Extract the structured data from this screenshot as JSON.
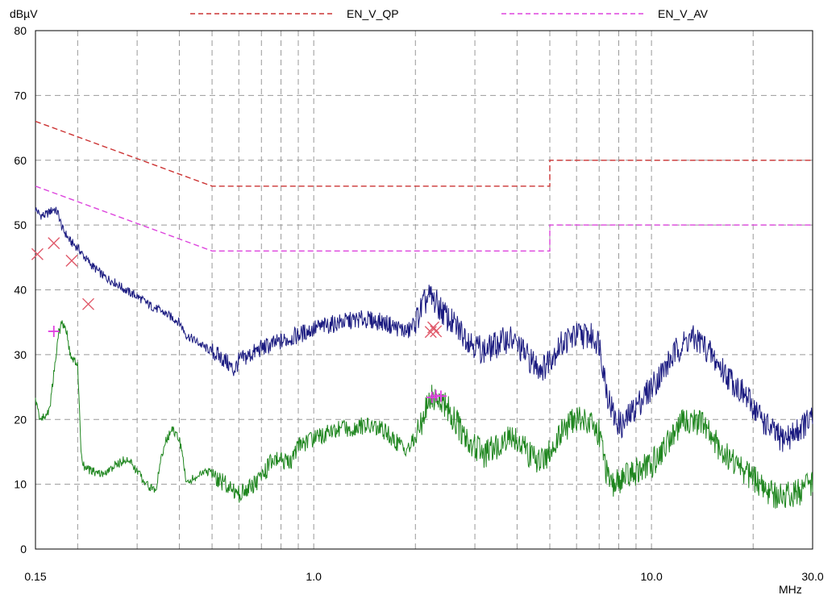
{
  "chart_data": {
    "type": "line",
    "xscale": "log",
    "xlim": [
      0.15,
      30.0
    ],
    "ylim": [
      0,
      80
    ],
    "ylabel": "dBµV",
    "xlabel": "MHz",
    "grid": true,
    "legend_position": "top",
    "x_tick_labels": [
      "0.15",
      "1.0",
      "10.0",
      "30.0"
    ],
    "x_ticks": [
      0.15,
      1.0,
      10.0,
      30.0
    ],
    "y_ticks": [
      0,
      10,
      20,
      30,
      40,
      50,
      60,
      70,
      80
    ],
    "y_tick_labels": [
      "0",
      "10",
      "20",
      "30",
      "40",
      "50",
      "60",
      "70",
      "80"
    ],
    "limits": [
      {
        "name": "EN_V_QP",
        "color": "#cc3333",
        "points": [
          [
            0.15,
            66
          ],
          [
            0.5,
            56
          ],
          [
            5.0,
            56
          ],
          [
            5.0,
            60
          ],
          [
            30.0,
            60
          ]
        ]
      },
      {
        "name": "EN_V_AV",
        "color": "#dd44dd",
        "points": [
          [
            0.15,
            56
          ],
          [
            0.5,
            46
          ],
          [
            5.0,
            46
          ],
          [
            5.0,
            50
          ],
          [
            30.0,
            50
          ]
        ]
      }
    ],
    "traces": [
      {
        "color": "#1a1a80",
        "points": [
          [
            0.15,
            52.5
          ],
          [
            0.155,
            51.5
          ],
          [
            0.16,
            51.5
          ],
          [
            0.165,
            52
          ],
          [
            0.17,
            52.5
          ],
          [
            0.175,
            51.8
          ],
          [
            0.18,
            49.5
          ],
          [
            0.19,
            47.5
          ],
          [
            0.2,
            46.5
          ],
          [
            0.21,
            45
          ],
          [
            0.22,
            43.8
          ],
          [
            0.24,
            42
          ],
          [
            0.26,
            41
          ],
          [
            0.28,
            39.8
          ],
          [
            0.3,
            39
          ],
          [
            0.33,
            37.5
          ],
          [
            0.36,
            36.5
          ],
          [
            0.4,
            35
          ],
          [
            0.42,
            33
          ],
          [
            0.45,
            32
          ],
          [
            0.48,
            31
          ],
          [
            0.5,
            30.5
          ],
          [
            0.55,
            29
          ],
          [
            0.58,
            27.5
          ],
          [
            0.6,
            29
          ],
          [
            0.65,
            30
          ],
          [
            0.7,
            31
          ],
          [
            0.8,
            32
          ],
          [
            0.9,
            33
          ],
          [
            1.0,
            34
          ],
          [
            1.2,
            35
          ],
          [
            1.4,
            35.5
          ],
          [
            1.6,
            35
          ],
          [
            1.8,
            34
          ],
          [
            1.9,
            33.5
          ],
          [
            2.0,
            35
          ],
          [
            2.1,
            37.5
          ],
          [
            2.2,
            39
          ],
          [
            2.3,
            38
          ],
          [
            2.5,
            35.5
          ],
          [
            2.8,
            33
          ],
          [
            3.0,
            31.5
          ],
          [
            3.2,
            30.5
          ],
          [
            3.6,
            32
          ],
          [
            3.8,
            32.5
          ],
          [
            4.0,
            31.5
          ],
          [
            4.5,
            28.5
          ],
          [
            4.8,
            28
          ],
          [
            5.0,
            29.5
          ],
          [
            5.5,
            32
          ],
          [
            6.0,
            33
          ],
          [
            6.5,
            33
          ],
          [
            7.0,
            32
          ],
          [
            7.2,
            28
          ],
          [
            7.4,
            24
          ],
          [
            7.8,
            20
          ],
          [
            8.2,
            19
          ],
          [
            8.6,
            20.5
          ],
          [
            9.0,
            22
          ],
          [
            10.0,
            25
          ],
          [
            11.0,
            28
          ],
          [
            12.0,
            31
          ],
          [
            13.0,
            32.5
          ],
          [
            14.0,
            32
          ],
          [
            15.0,
            30
          ],
          [
            16.0,
            28
          ],
          [
            18.0,
            25
          ],
          [
            20.0,
            22
          ],
          [
            22.0,
            19
          ],
          [
            24.0,
            17
          ],
          [
            26.0,
            17.5
          ],
          [
            28.0,
            19
          ],
          [
            30.0,
            20
          ]
        ]
      },
      {
        "color": "#1f861f",
        "points": [
          [
            0.15,
            23
          ],
          [
            0.155,
            20
          ],
          [
            0.16,
            20.5
          ],
          [
            0.165,
            21.5
          ],
          [
            0.17,
            27
          ],
          [
            0.175,
            33
          ],
          [
            0.18,
            35
          ],
          [
            0.185,
            34
          ],
          [
            0.19,
            30
          ],
          [
            0.195,
            29
          ],
          [
            0.2,
            28.5
          ],
          [
            0.205,
            14
          ],
          [
            0.21,
            12.5
          ],
          [
            0.22,
            12
          ],
          [
            0.24,
            11.5
          ],
          [
            0.26,
            13
          ],
          [
            0.28,
            14
          ],
          [
            0.3,
            12
          ],
          [
            0.32,
            10
          ],
          [
            0.34,
            9
          ],
          [
            0.36,
            16
          ],
          [
            0.38,
            18.5
          ],
          [
            0.4,
            17
          ],
          [
            0.42,
            10.5
          ],
          [
            0.45,
            11
          ],
          [
            0.48,
            12
          ],
          [
            0.5,
            11.5
          ],
          [
            0.55,
            10
          ],
          [
            0.6,
            8.5
          ],
          [
            0.65,
            9.5
          ],
          [
            0.7,
            11
          ],
          [
            0.75,
            13.5
          ],
          [
            0.8,
            14
          ],
          [
            0.85,
            13
          ],
          [
            0.9,
            16
          ],
          [
            1.0,
            17
          ],
          [
            1.1,
            18
          ],
          [
            1.2,
            18.5
          ],
          [
            1.4,
            19
          ],
          [
            1.6,
            18.5
          ],
          [
            1.8,
            16
          ],
          [
            1.9,
            15.5
          ],
          [
            2.0,
            17
          ],
          [
            2.1,
            20
          ],
          [
            2.2,
            23
          ],
          [
            2.3,
            23.5
          ],
          [
            2.5,
            21.5
          ],
          [
            2.8,
            17.5
          ],
          [
            3.0,
            16
          ],
          [
            3.2,
            14.5
          ],
          [
            3.5,
            16
          ],
          [
            3.8,
            17.5
          ],
          [
            4.0,
            17
          ],
          [
            4.3,
            15
          ],
          [
            4.6,
            13.5
          ],
          [
            5.0,
            15
          ],
          [
            5.5,
            18.5
          ],
          [
            6.0,
            20
          ],
          [
            6.5,
            20
          ],
          [
            7.0,
            18
          ],
          [
            7.2,
            15
          ],
          [
            7.4,
            11
          ],
          [
            7.6,
            9.5
          ],
          [
            8.0,
            10.5
          ],
          [
            9.0,
            12
          ],
          [
            10.0,
            13
          ],
          [
            11.0,
            16
          ],
          [
            12.0,
            19
          ],
          [
            13.0,
            20
          ],
          [
            14.0,
            19.5
          ],
          [
            15.0,
            17.5
          ],
          [
            16.0,
            15.5
          ],
          [
            18.0,
            13
          ],
          [
            20.0,
            11
          ],
          [
            22.0,
            9
          ],
          [
            24.0,
            8
          ],
          [
            26.0,
            8.5
          ],
          [
            28.0,
            9
          ],
          [
            30.0,
            10
          ]
        ]
      }
    ],
    "qp_markers": [
      [
        0.152,
        45.5
      ],
      [
        0.17,
        47.2
      ],
      [
        0.192,
        44.5
      ],
      [
        0.215,
        37.8
      ],
      [
        2.22,
        33.5
      ],
      [
        2.26,
        34.2
      ],
      [
        2.3,
        33.6
      ]
    ],
    "av_markers": [
      [
        0.17,
        33.6
      ],
      [
        2.24,
        23.4
      ],
      [
        2.3,
        23.7
      ],
      [
        2.38,
        23.6
      ]
    ]
  }
}
